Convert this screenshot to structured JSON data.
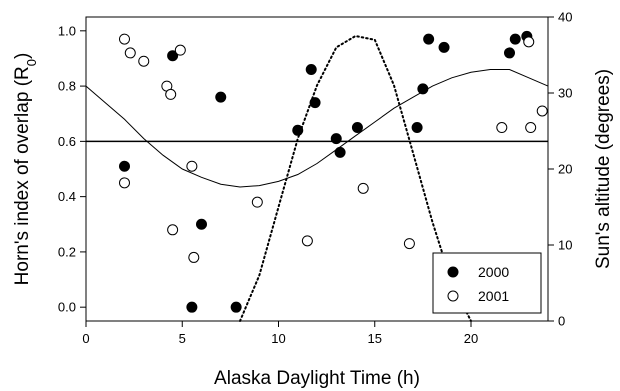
{
  "chart_data": {
    "type": "scatter",
    "xlabel": "Alaska Daylight Time (h)",
    "ylabel": "Horn's index of overlap (R",
    "ylabel_sub": "0",
    "ylabel_close": ")",
    "y2label": "Sun's altitude (degrees)",
    "xlim": [
      0,
      24
    ],
    "ylim": [
      -0.05,
      1.05
    ],
    "y2lim": [
      0,
      40
    ],
    "x_ticks": [
      0,
      5,
      10,
      15,
      20
    ],
    "y_ticks": [
      0.0,
      0.2,
      0.4,
      0.6,
      0.8,
      1.0
    ],
    "y_tick_labels": [
      "0.0",
      "0.2",
      "0.4",
      "0.6",
      "0.8",
      "1.0"
    ],
    "y2_ticks": [
      0,
      10,
      20,
      30,
      40
    ],
    "reference_line_y": 0.6,
    "legend_position": "bottom-right",
    "series": [
      {
        "name": "2000",
        "marker": "filled-circle",
        "color": "#000000",
        "points": [
          [
            2.0,
            0.51
          ],
          [
            4.5,
            0.91
          ],
          [
            5.5,
            0.0
          ],
          [
            6.0,
            0.3
          ],
          [
            7.0,
            0.76
          ],
          [
            7.8,
            0.0
          ],
          [
            11.0,
            0.64
          ],
          [
            11.7,
            0.86
          ],
          [
            11.9,
            0.74
          ],
          [
            13.0,
            0.61
          ],
          [
            13.2,
            0.56
          ],
          [
            14.1,
            0.65
          ],
          [
            17.2,
            0.65
          ],
          [
            17.5,
            0.79
          ],
          [
            17.8,
            0.97
          ],
          [
            18.6,
            0.94
          ],
          [
            22.0,
            0.92
          ],
          [
            22.3,
            0.97
          ],
          [
            22.9,
            0.98
          ]
        ]
      },
      {
        "name": "2001",
        "marker": "open-circle",
        "color": "#000000",
        "points": [
          [
            2.0,
            0.97
          ],
          [
            2.0,
            0.45
          ],
          [
            2.3,
            0.92
          ],
          [
            3.0,
            0.89
          ],
          [
            4.2,
            0.8
          ],
          [
            4.4,
            0.77
          ],
          [
            4.5,
            0.28
          ],
          [
            4.9,
            0.93
          ],
          [
            5.5,
            0.51
          ],
          [
            5.6,
            0.18
          ],
          [
            8.9,
            0.38
          ],
          [
            11.5,
            0.24
          ],
          [
            14.4,
            0.43
          ],
          [
            16.8,
            0.23
          ],
          [
            21.6,
            0.65
          ],
          [
            23.0,
            0.96
          ],
          [
            23.1,
            0.65
          ],
          [
            23.7,
            0.71
          ]
        ]
      }
    ],
    "curves": [
      {
        "name": "horn-model",
        "axis": "y",
        "style": "solid",
        "x": [
          0,
          1,
          2,
          3,
          4,
          5,
          6,
          7,
          8,
          9,
          10,
          11,
          12,
          13,
          14,
          15,
          16,
          17,
          18,
          19,
          20,
          21,
          22,
          23,
          24
        ],
        "y": [
          0.8,
          0.74,
          0.68,
          0.61,
          0.55,
          0.5,
          0.47,
          0.445,
          0.435,
          0.44,
          0.455,
          0.48,
          0.52,
          0.57,
          0.62,
          0.67,
          0.72,
          0.76,
          0.8,
          0.83,
          0.85,
          0.86,
          0.86,
          0.83,
          0.8
        ]
      },
      {
        "name": "sun-altitude",
        "axis": "y2",
        "style": "dotted",
        "x": [
          8.0,
          9.0,
          10.0,
          11.0,
          12.0,
          13.0,
          14.0,
          15.0,
          16.0,
          17.0,
          18.0,
          19.0,
          20.0
        ],
        "y": [
          0,
          6,
          15,
          24,
          31,
          36,
          37.5,
          37,
          31,
          22,
          13,
          5,
          0
        ]
      }
    ]
  }
}
